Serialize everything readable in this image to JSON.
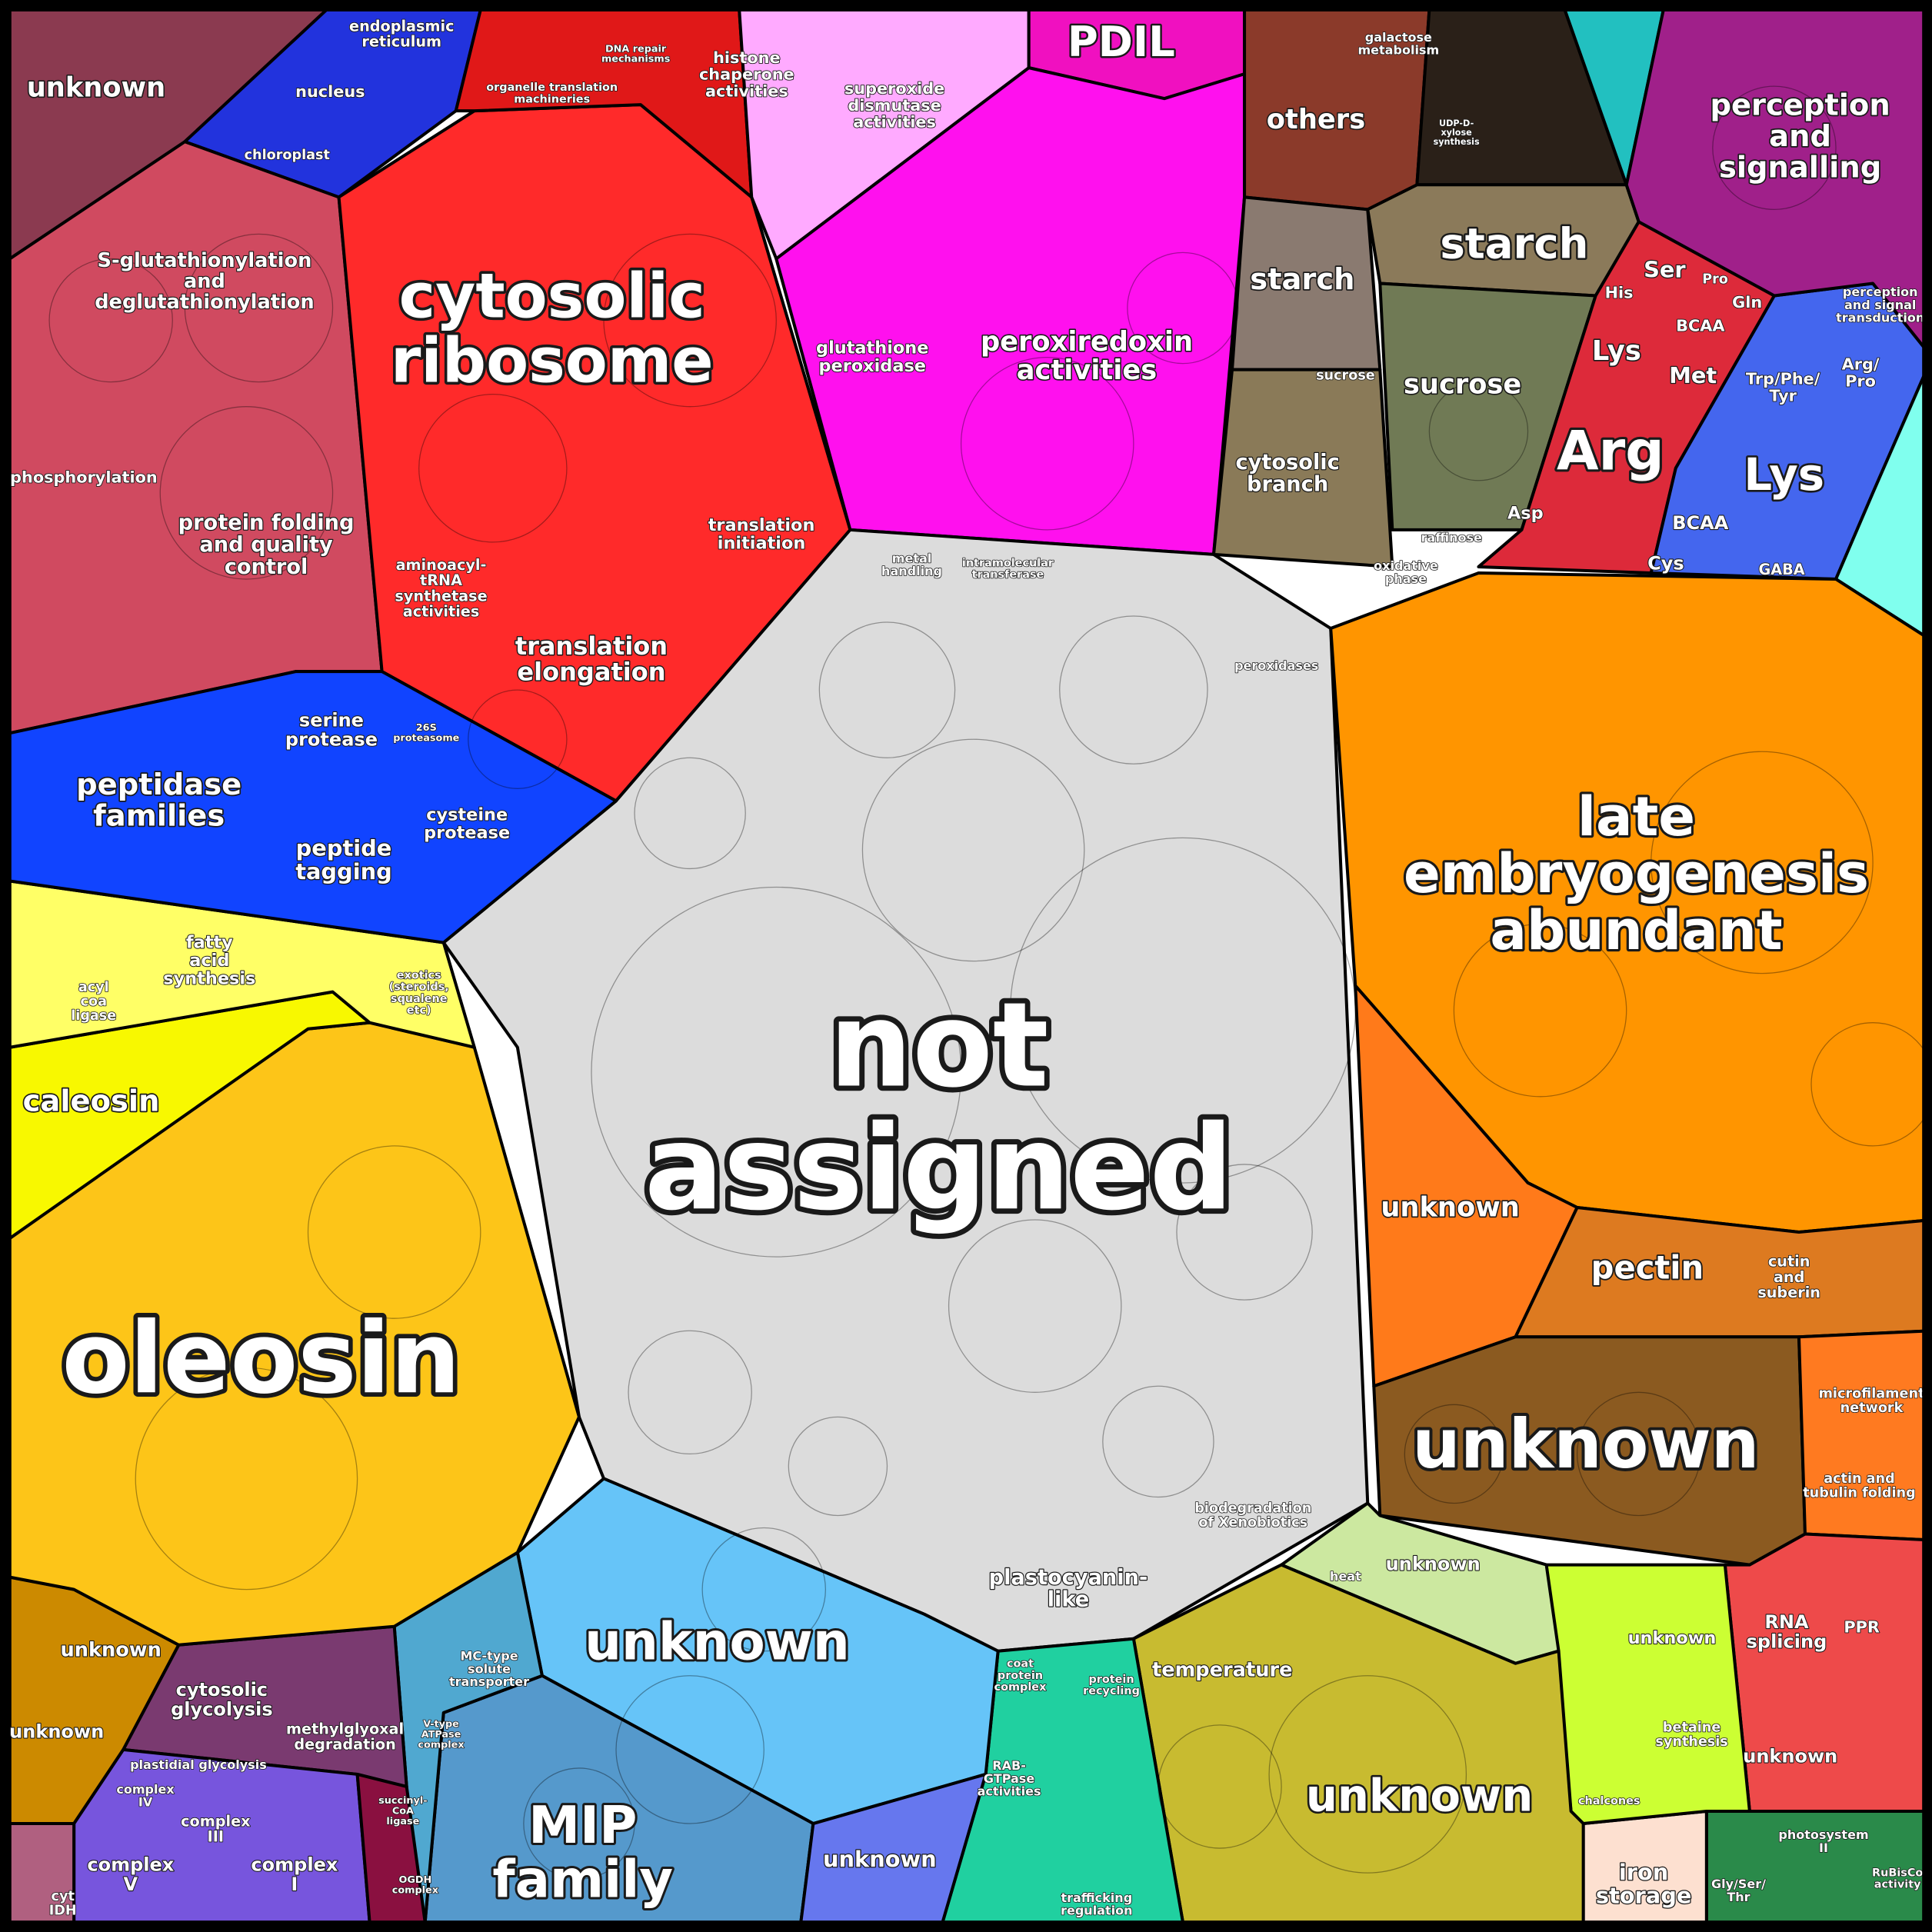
{
  "labels": [
    {
      "lines": [
        "unknown"
      ]
    },
    {
      "lines": [
        "endoplasmic",
        "reticulum"
      ]
    },
    {
      "lines": [
        "nucleus"
      ]
    },
    {
      "lines": [
        "chloroplast"
      ]
    },
    {
      "lines": [
        "histone",
        "chaperone",
        "activities"
      ]
    },
    {
      "lines": [
        "DNA repair",
        "mechanisms"
      ]
    },
    {
      "lines": [
        "organelle translation",
        "machineries"
      ]
    },
    {
      "lines": [
        "superoxide",
        "dismutase",
        "activities"
      ]
    },
    {
      "lines": [
        "PDIL"
      ]
    },
    {
      "lines": [
        "others"
      ]
    },
    {
      "lines": [
        "galactose",
        "metabolism"
      ]
    },
    {
      "lines": [
        "UDP-D-",
        "xylose",
        "synthesis"
      ]
    },
    {
      "lines": [
        "perception",
        "and",
        "signalling"
      ]
    },
    {
      "lines": [
        "S-glutathionylation",
        "and",
        "deglutathionylation"
      ]
    },
    {
      "lines": [
        "cytosolic",
        "ribosome"
      ]
    },
    {
      "lines": [
        "glutathione",
        "peroxidase"
      ]
    },
    {
      "lines": [
        "peroxiredoxin",
        "activities"
      ]
    },
    {
      "lines": [
        "starch"
      ]
    },
    {
      "lines": [
        "starch"
      ]
    },
    {
      "lines": [
        "sucrose"
      ]
    },
    {
      "lines": [
        "sucrose"
      ]
    },
    {
      "lines": [
        "cytosolic",
        "branch"
      ]
    },
    {
      "lines": [
        "raffinose"
      ]
    },
    {
      "lines": [
        "oxidative",
        "phase"
      ]
    },
    {
      "lines": [
        "Ser"
      ]
    },
    {
      "lines": [
        "His"
      ]
    },
    {
      "lines": [
        "Pro"
      ]
    },
    {
      "lines": [
        "Gln"
      ]
    },
    {
      "lines": [
        "BCAA"
      ]
    },
    {
      "lines": [
        "Lys"
      ]
    },
    {
      "lines": [
        "Met"
      ]
    },
    {
      "lines": [
        "Arg"
      ]
    },
    {
      "lines": [
        "Asp"
      ]
    },
    {
      "lines": [
        "Trp/Phe/",
        "Tyr"
      ]
    },
    {
      "lines": [
        "Arg/",
        "Pro"
      ]
    },
    {
      "lines": [
        "Lys"
      ]
    },
    {
      "lines": [
        "BCAA"
      ]
    },
    {
      "lines": [
        "Cys"
      ]
    },
    {
      "lines": [
        "GABA"
      ]
    },
    {
      "lines": [
        "perception",
        "and signal",
        "transduction"
      ]
    },
    {
      "lines": [
        "phosphorylation"
      ]
    },
    {
      "lines": [
        "protein folding",
        "and quality",
        "control"
      ]
    },
    {
      "lines": [
        "aminoacyl-",
        "tRNA",
        "synthetase",
        "activities"
      ]
    },
    {
      "lines": [
        "translation",
        "initiation"
      ]
    },
    {
      "lines": [
        "translation",
        "elongation"
      ]
    },
    {
      "lines": [
        "not",
        "assigned"
      ]
    },
    {
      "lines": [
        "serine",
        "protease"
      ]
    },
    {
      "lines": [
        "26S",
        "proteasome"
      ]
    },
    {
      "lines": [
        "peptidase",
        "families"
      ]
    },
    {
      "lines": [
        "cysteine",
        "protease"
      ]
    },
    {
      "lines": [
        "peptide",
        "tagging"
      ]
    },
    {
      "lines": [
        "metal",
        "handling"
      ]
    },
    {
      "lines": [
        "intramolecular",
        "transferase"
      ]
    },
    {
      "lines": [
        "peroxidases"
      ]
    },
    {
      "lines": [
        "late",
        "embryogenesis",
        "abundant"
      ]
    },
    {
      "lines": [
        "fatty",
        "acid",
        "synthesis"
      ]
    },
    {
      "lines": [
        "acyl",
        "coa",
        "ligase"
      ]
    },
    {
      "lines": [
        "exotics",
        "(steroids,",
        "squalene",
        "etc)"
      ]
    },
    {
      "lines": [
        "caleosin"
      ]
    },
    {
      "lines": [
        "oleosin"
      ]
    },
    {
      "lines": [
        "unknown"
      ]
    },
    {
      "lines": [
        "pectin"
      ]
    },
    {
      "lines": [
        "cutin",
        "and",
        "suberin"
      ]
    },
    {
      "lines": [
        "unknown"
      ]
    },
    {
      "lines": [
        "microfilament",
        "network"
      ]
    },
    {
      "lines": [
        "actin and",
        "tubulin folding"
      ]
    },
    {
      "lines": [
        "biodegradation",
        "of Xenobiotics"
      ]
    },
    {
      "lines": [
        "plastocyanin-",
        "like"
      ]
    },
    {
      "lines": [
        "unknown"
      ]
    },
    {
      "lines": [
        "unknown"
      ]
    },
    {
      "lines": [
        "temperature"
      ]
    },
    {
      "lines": [
        "unknown"
      ]
    },
    {
      "lines": [
        "unknown"
      ]
    },
    {
      "lines": [
        "RNA",
        "splicing"
      ]
    },
    {
      "lines": [
        "PPR"
      ]
    },
    {
      "lines": [
        "unknown"
      ]
    },
    {
      "lines": [
        "betaine",
        "synthesis"
      ]
    },
    {
      "lines": [
        "MC-type",
        "solute",
        "transporter"
      ]
    },
    {
      "lines": [
        "coat",
        "protein",
        "complex"
      ]
    },
    {
      "lines": [
        "protein",
        "recycling"
      ]
    },
    {
      "lines": [
        "RAB-",
        "GTPase",
        "activities"
      ]
    },
    {
      "lines": [
        "unknown"
      ]
    },
    {
      "lines": [
        "cytosolic",
        "glycolysis"
      ]
    },
    {
      "lines": [
        "methylglyoxal",
        "degradation"
      ]
    },
    {
      "lines": [
        "plastidial glycolysis"
      ]
    },
    {
      "lines": [
        "unknown"
      ]
    },
    {
      "lines": [
        "MIP",
        "family"
      ]
    },
    {
      "lines": [
        "unknown"
      ]
    },
    {
      "lines": [
        "complex",
        "IV"
      ]
    },
    {
      "lines": [
        "complex",
        "III"
      ]
    },
    {
      "lines": [
        "complex",
        "V"
      ]
    },
    {
      "lines": [
        "complex",
        "I"
      ]
    },
    {
      "lines": [
        "succinyl-",
        "CoA",
        "ligase"
      ]
    },
    {
      "lines": [
        "OGDH",
        "complex"
      ]
    },
    {
      "lines": [
        "cyt",
        "IDH"
      ]
    },
    {
      "lines": [
        "iron",
        "storage"
      ]
    },
    {
      "lines": [
        "Gly/Ser/",
        "Thr"
      ]
    },
    {
      "lines": [
        "photosystem",
        "II"
      ]
    },
    {
      "lines": [
        "RuBisCo",
        "activity"
      ]
    },
    {
      "lines": [
        "trafficking",
        "regulation"
      ]
    },
    {
      "lines": [
        "V-type",
        "ATPase",
        "complex"
      ]
    },
    {
      "lines": [
        "chalcones"
      ]
    },
    {
      "lines": [
        "heat"
      ]
    }
  ]
}
